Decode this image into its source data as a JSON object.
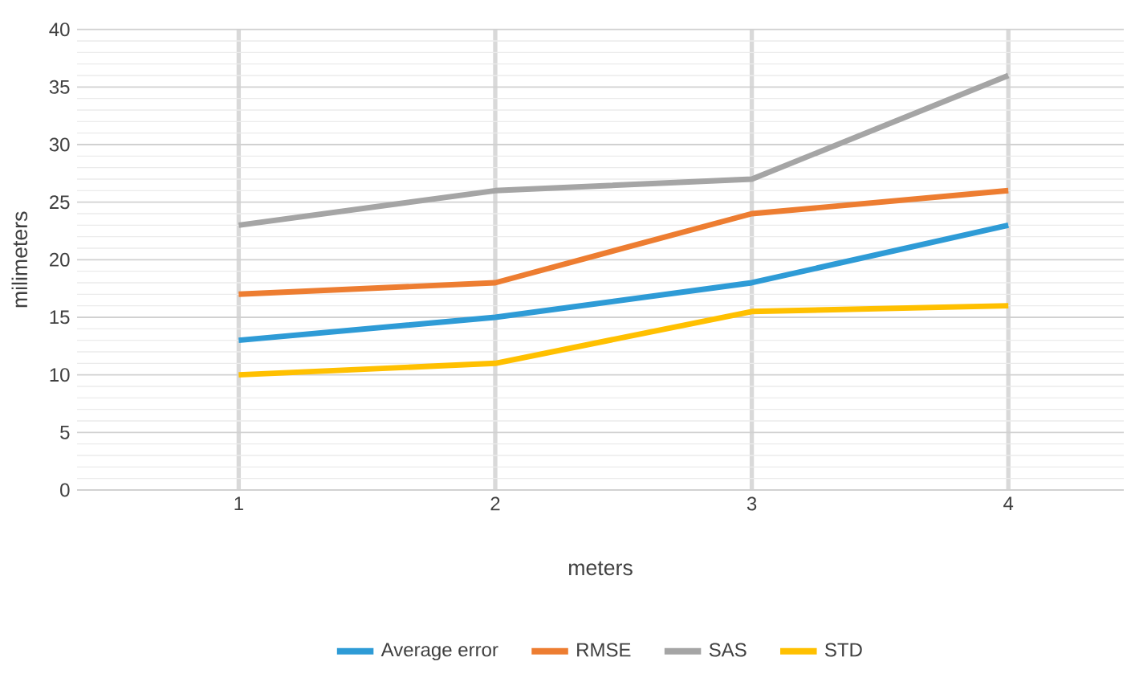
{
  "chart_data": {
    "type": "line",
    "xlabel": "meters",
    "ylabel": "milimeters",
    "categories": [
      "1",
      "2",
      "3",
      "4"
    ],
    "series": [
      {
        "name": "Average error",
        "color": "#2e9bd6",
        "values": [
          13,
          15,
          18,
          23
        ]
      },
      {
        "name": "RMSE",
        "color": "#ed7d31",
        "values": [
          17,
          18,
          24,
          26
        ]
      },
      {
        "name": "SAS",
        "color": "#a5a5a5",
        "values": [
          23,
          26,
          27,
          36
        ]
      },
      {
        "name": "STD",
        "color": "#ffc000",
        "values": [
          10,
          11,
          15.5,
          16
        ]
      }
    ],
    "ylim": [
      0,
      40
    ],
    "yticks": [
      0,
      5,
      10,
      15,
      20,
      25,
      30,
      35,
      40
    ],
    "grid": true,
    "legend": "bottom",
    "marker": "none",
    "line_style": "solid"
  }
}
